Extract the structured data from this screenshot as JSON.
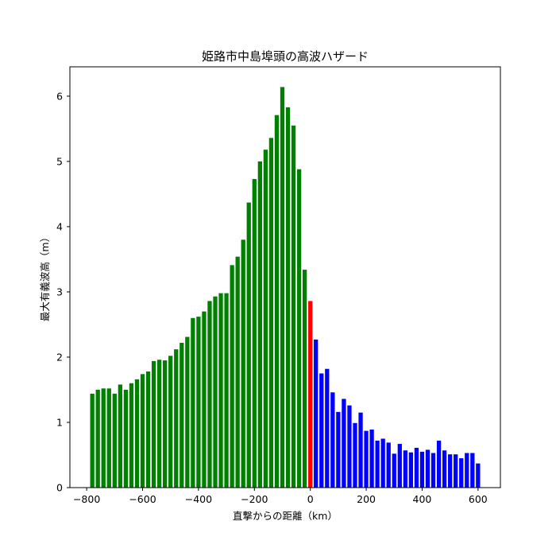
{
  "chart_data": {
    "type": "bar",
    "title": "姫路市中島埠頭の高波ハザード",
    "xlabel": "直撃からの距離（km）",
    "ylabel": "最大有義波高（m）",
    "xlim": [
      -860,
      680
    ],
    "ylim": [
      0,
      6.45
    ],
    "xticks": [
      -800,
      -600,
      -400,
      -200,
      0,
      200,
      400,
      600
    ],
    "xtick_labels": [
      "−800",
      "−600",
      "−400",
      "−200",
      "0",
      "200",
      "400",
      "600"
    ],
    "yticks": [
      0,
      1,
      2,
      3,
      4,
      5,
      6
    ],
    "ytick_labels": [
      "0",
      "1",
      "2",
      "3",
      "4",
      "5",
      "6"
    ],
    "bar_width_km": 15,
    "grid": false,
    "series": [
      {
        "color": "#008000",
        "x": [
          -780,
          -760,
          -740,
          -720,
          -700,
          -680,
          -660,
          -640,
          -620,
          -600,
          -580,
          -560,
          -540,
          -520,
          -500,
          -480,
          -460,
          -440,
          -420,
          -400,
          -380,
          -360,
          -340,
          -320,
          -300,
          -280,
          -260,
          -240,
          -220,
          -200,
          -180,
          -160,
          -140,
          -120,
          -100,
          -80,
          -60,
          -40,
          -20
        ],
        "values": [
          1.44,
          1.5,
          1.52,
          1.52,
          1.44,
          1.58,
          1.5,
          1.6,
          1.66,
          1.74,
          1.78,
          1.94,
          1.96,
          1.95,
          2.02,
          2.12,
          2.22,
          2.31,
          2.6,
          2.62,
          2.7,
          2.86,
          2.93,
          2.98,
          2.98,
          3.41,
          3.54,
          3.8,
          4.37,
          4.73,
          5.0,
          5.18,
          5.36,
          5.71,
          6.14,
          5.83,
          5.55,
          4.88,
          3.34
        ]
      },
      {
        "color": "#ff0000",
        "x": [
          0
        ],
        "values": [
          2.86
        ]
      },
      {
        "color": "#0000ff",
        "x": [
          20,
          40,
          60,
          80,
          100,
          120,
          140,
          160,
          180,
          200,
          220,
          240,
          260,
          280,
          300,
          320,
          340,
          360,
          380,
          400,
          420,
          440,
          460,
          480,
          500,
          520,
          540,
          560,
          580,
          600
        ],
        "values": [
          2.27,
          1.75,
          1.82,
          1.46,
          1.16,
          1.36,
          1.26,
          0.99,
          1.15,
          0.87,
          0.89,
          0.72,
          0.75,
          0.69,
          0.52,
          0.67,
          0.57,
          0.54,
          0.61,
          0.55,
          0.58,
          0.53,
          0.72,
          0.57,
          0.51,
          0.51,
          0.45,
          0.53,
          0.53,
          0.37
        ]
      }
    ]
  }
}
